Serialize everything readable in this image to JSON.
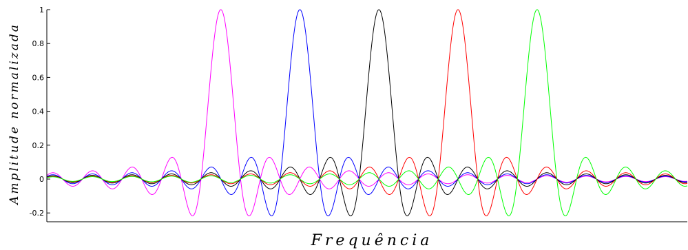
{
  "chart_data": {
    "type": "line",
    "title": "",
    "xlabel": "Frequência",
    "ylabel": "Amplitude normalizada",
    "ylim": [
      -0.23,
      1.0
    ],
    "y_ticks": [
      -0.2,
      0,
      0.2,
      0.4,
      0.6,
      0.8,
      1
    ],
    "y_tick_labels": [
      "-0.2",
      "0",
      "0.2",
      "0.4",
      "0.6",
      "0.8",
      "1"
    ],
    "x_ticks_shown": false,
    "grid": false,
    "legend": "none",
    "series": [
      {
        "color": "#ff00ff",
        "peak_x": 0,
        "peak_y": 1
      },
      {
        "color": "#0000ff",
        "peak_x": 1,
        "peak_y": 1
      },
      {
        "color": "#000000",
        "peak_x": 2,
        "peak_y": 1
      },
      {
        "color": "#ff0000",
        "peak_x": 3,
        "peak_y": 1
      },
      {
        "color": "#00ff00",
        "peak_x": 4,
        "peak_y": 1
      }
    ],
    "xlim": [
      -2.2,
      5.9
    ],
    "zero_spacing": 0.25
  }
}
